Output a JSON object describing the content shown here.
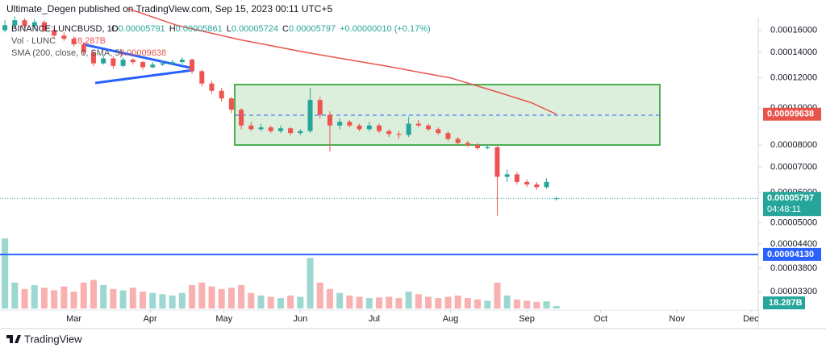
{
  "header": {
    "byline": "Ultimate_Degen published on TradingView.com, Sep 15, 2023 00:11 UTC+5",
    "brand": "TradingView"
  },
  "chart_data": {
    "type": "candlestick",
    "symbol": "BINANCE:LUNCBUSD, 1D",
    "ohlc_keys": [
      "O",
      "H",
      "L",
      "C"
    ],
    "change": "+0.00000010 (+0.17%)",
    "up_color": "#26a69a",
    "down_color": "#ef5350",
    "log_scale": true,
    "grid": false,
    "xlim": [
      -2,
      306
    ],
    "ylim": [
      2.95e-05,
      0.000183
    ],
    "xticks": [
      {
        "value": 28,
        "label": "Mar"
      },
      {
        "value": 59,
        "label": "Apr"
      },
      {
        "value": 89,
        "label": "May"
      },
      {
        "value": 120,
        "label": "Jun"
      },
      {
        "value": 150,
        "label": "Jul"
      },
      {
        "value": 181,
        "label": "Aug"
      },
      {
        "value": 212,
        "label": "Sep"
      },
      {
        "value": 242,
        "label": "Oct"
      },
      {
        "value": 273,
        "label": "Nov"
      },
      {
        "value": 303,
        "label": "Dec"
      }
    ],
    "yticks": [
      {
        "value": 0.00016,
        "label": "0.00016000"
      },
      {
        "value": 0.00014,
        "label": "0.00014000"
      },
      {
        "value": 0.00012,
        "label": "0.00012000"
      },
      {
        "value": 0.0001,
        "label": "0.00010000"
      },
      {
        "value": 8e-05,
        "label": "0.00008000"
      },
      {
        "value": 7e-05,
        "label": "0.00007000"
      },
      {
        "value": 6e-05,
        "label": "0.00006000"
      },
      {
        "value": 5e-05,
        "label": "0.00005000"
      },
      {
        "value": 4.4e-05,
        "label": "0.00004400"
      },
      {
        "value": 3.8e-05,
        "label": "0.00003800"
      },
      {
        "value": 3.3e-05,
        "label": "0.00003300"
      }
    ],
    "x": [
      0,
      4,
      8,
      12,
      16,
      20,
      24,
      28,
      32,
      36,
      40,
      44,
      48,
      52,
      56,
      60,
      64,
      68,
      72,
      76,
      80,
      84,
      88,
      92,
      96,
      100,
      104,
      108,
      112,
      116,
      120,
      124,
      128,
      132,
      136,
      140,
      144,
      148,
      152,
      156,
      160,
      164,
      168,
      172,
      176,
      180,
      184,
      188,
      192,
      196,
      200,
      204,
      208,
      212,
      216,
      220,
      224
    ],
    "open": [
      0.00016,
      0.000165,
      0.00017,
      0.000164,
      0.000168,
      0.00016,
      0.000155,
      0.000152,
      0.000147,
      0.00014,
      0.000131,
      0.000135,
      0.000129,
      0.000134,
      0.000132,
      0.000128,
      0.00013,
      0.000131,
      0.000132,
      0.000134,
      0.000125,
      0.000116,
      0.000111,
      0.000106,
      9.9e-05,
      9e-05,
      8.8e-05,
      8.9e-05,
      8.7e-05,
      8.85e-05,
      8.6e-05,
      8.7e-05,
      0.000105,
      9.6e-05,
      9e-05,
      9.2e-05,
      9e-05,
      8.8e-05,
      9e-05,
      8.7e-05,
      8.55e-05,
      8.5e-05,
      9.1e-05,
      9e-05,
      8.8e-05,
      8.6e-05,
      8.3e-05,
      8.1e-05,
      8e-05,
      7.85e-05,
      7.9e-05,
      6.6e-05,
      6.7e-05,
      6.4e-05,
      6.3e-05,
      6.2e-05,
      5.791e-05
    ],
    "high": [
      0.00017,
      0.000174,
      0.000172,
      0.000171,
      0.00017,
      0.000162,
      0.000158,
      0.000154,
      0.000149,
      0.000142,
      0.000138,
      0.000137,
      0.000136,
      0.000135,
      0.000133,
      0.000132,
      0.000133,
      0.000134,
      0.000136,
      0.000135,
      0.000126,
      0.000118,
      0.000113,
      0.000107,
      0.0001,
      9.2e-05,
      9.1e-05,
      9e-05,
      9e-05,
      8.9e-05,
      8.8e-05,
      0.000113,
      0.000107,
      9.8e-05,
      9.4e-05,
      9.3e-05,
      9.1e-05,
      9.2e-05,
      9.1e-05,
      8.8e-05,
      8.7e-05,
      9.5e-05,
      9.3e-05,
      9.1e-05,
      8.9e-05,
      8.7e-05,
      8.4e-05,
      8.2e-05,
      8.1e-05,
      8e-05,
      7.95e-05,
      6.9e-05,
      6.8e-05,
      6.5e-05,
      6.4e-05,
      6.55e-05,
      5.861e-05
    ],
    "low": [
      0.000158,
      0.000162,
      0.000162,
      0.000161,
      0.000158,
      0.000153,
      0.00015,
      0.000145,
      0.000138,
      0.000129,
      0.00013,
      0.000127,
      0.000128,
      0.00013,
      0.000126,
      0.000127,
      0.000129,
      0.00013,
      0.000131,
      0.000123,
      0.000114,
      0.000109,
      0.000104,
      9.7e-05,
      8.8e-05,
      8.7e-05,
      8.7e-05,
      8.6e-05,
      8.6e-05,
      8.5e-05,
      8.5e-05,
      8.6e-05,
      9.4e-05,
      7.7e-05,
      8.8e-05,
      8.9e-05,
      8.7e-05,
      8.7e-05,
      8.6e-05,
      8.4e-05,
      8.3e-05,
      8.4e-05,
      8.9e-05,
      8.7e-05,
      8.5e-05,
      8.2e-05,
      8e-05,
      7.9e-05,
      7.75e-05,
      7.8e-05,
      5.22e-05,
      6.4e-05,
      6.3e-05,
      6.2e-05,
      6.1e-05,
      6.15e-05,
      5.724e-05
    ],
    "close": [
      0.000165,
      0.00017,
      0.000164,
      0.000168,
      0.00016,
      0.000155,
      0.000152,
      0.000147,
      0.00014,
      0.000131,
      0.000135,
      0.000129,
      0.000134,
      0.000132,
      0.000128,
      0.00013,
      0.000131,
      0.000132,
      0.000134,
      0.000125,
      0.000116,
      0.000111,
      0.000106,
      9.9e-05,
      9e-05,
      8.8e-05,
      8.9e-05,
      8.7e-05,
      8.85e-05,
      8.6e-05,
      8.7e-05,
      0.000105,
      9.6e-05,
      9e-05,
      9.2e-05,
      9e-05,
      8.8e-05,
      9e-05,
      8.7e-05,
      8.55e-05,
      8.5e-05,
      9.1e-05,
      9e-05,
      8.8e-05,
      8.6e-05,
      8.3e-05,
      8.1e-05,
      8e-05,
      7.85e-05,
      7.9e-05,
      6.6e-05,
      6.7e-05,
      6.4e-05,
      6.3e-05,
      6.2e-05,
      6.4e-05,
      5.797e-05
    ],
    "countdown": "04:48:11",
    "volume": {
      "name": "Vol · LUNC",
      "ylim": [
        0,
        620
      ],
      "last_label": "18.287B",
      "values": [
        540,
        200,
        150,
        180,
        160,
        140,
        170,
        130,
        200,
        220,
        180,
        150,
        140,
        160,
        130,
        120,
        110,
        100,
        120,
        180,
        200,
        170,
        150,
        160,
        180,
        120,
        100,
        90,
        80,
        100,
        90,
        390,
        200,
        150,
        120,
        100,
        90,
        80,
        85,
        90,
        80,
        130,
        110,
        90,
        80,
        90,
        100,
        80,
        70,
        60,
        200,
        100,
        70,
        60,
        50,
        55,
        18.287
      ]
    },
    "sma": {
      "name": "SMA (200, close, 0, SMA, 5)",
      "color": "#e8534b",
      "x": [
        50,
        70,
        96,
        122,
        155,
        181,
        201,
        214,
        224
      ],
      "values": [
        0.0001824,
        0.0001648,
        0.0001509,
        0.0001401,
        0.0001288,
        0.00012,
        0.0001097,
        0.0001032,
        9.638e-05
      ]
    },
    "hline": {
      "value": 4.13e-05,
      "label": "0.00004130",
      "color": "#2962ff"
    }
  }
}
